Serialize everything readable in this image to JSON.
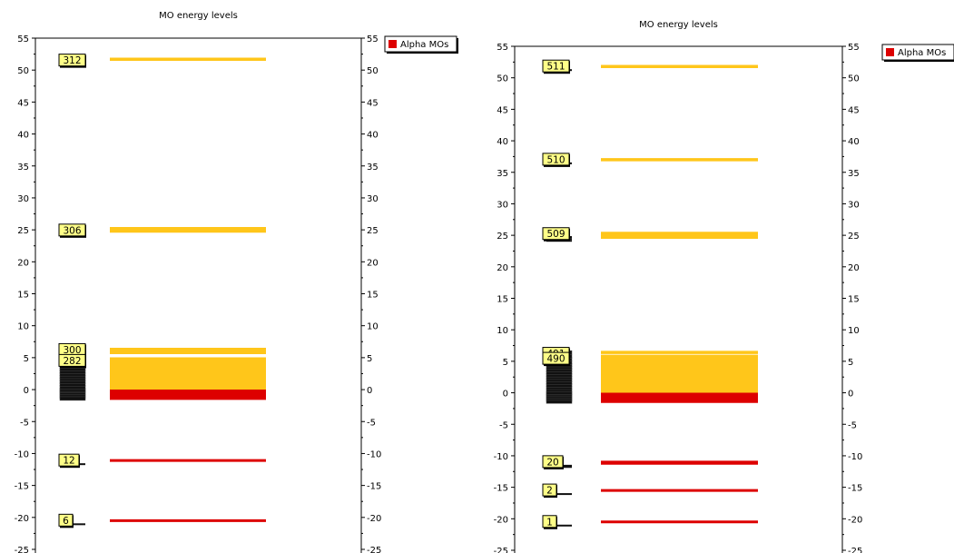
{
  "colors": {
    "occupied": "#dd0000",
    "virtual": "#ffc61a",
    "label_fill": "#ffff88",
    "frame": "#000000"
  },
  "chart_data": [
    {
      "type": "energy_level_diagram",
      "title": "MO energy levels",
      "ylim": [
        -25,
        55
      ],
      "yticks": [
        -25,
        -20,
        -15,
        -10,
        -5,
        0,
        5,
        10,
        15,
        20,
        25,
        30,
        35,
        40,
        45,
        50,
        55
      ],
      "legend": {
        "entries": [
          "Alpha MOs"
        ],
        "position": "right"
      },
      "series": [
        {
          "name": "Alpha MOs",
          "occupied_levels": [
            -20.5,
            -11.1,
            -0.2,
            -0.5,
            -0.8,
            -1.1,
            -1.4
          ],
          "virtual_levels": [
            0.0,
            0.4,
            0.8,
            1.2,
            1.6,
            2.0,
            2.4,
            2.8,
            3.2,
            3.6,
            4.0,
            4.4,
            4.8,
            5.8,
            6.3,
            24.8,
            25.2,
            51.7
          ],
          "labels": [
            {
              "text": "312",
              "energy": 51.5
            },
            {
              "text": "306",
              "energy": 24.9
            },
            {
              "text": "300",
              "energy": 6.2
            },
            {
              "text": "282",
              "energy": 4.5
            },
            {
              "text": "12",
              "energy": -11.1
            },
            {
              "text": "6",
              "energy": -20.5
            }
          ]
        }
      ]
    },
    {
      "type": "energy_level_diagram",
      "title": "MO energy levels",
      "ylim": [
        -25,
        55
      ],
      "yticks": [
        -25,
        -20,
        -15,
        -10,
        -5,
        0,
        5,
        10,
        15,
        20,
        25,
        30,
        35,
        40,
        45,
        50,
        55
      ],
      "legend": {
        "entries": [
          "Alpha MOs"
        ],
        "position": "right"
      },
      "series": [
        {
          "name": "Alpha MOs",
          "occupied_levels": [
            -20.5,
            -15.5,
            -11.2,
            -11.0,
            -0.2,
            -0.5,
            -0.8,
            -1.1,
            -1.4
          ],
          "virtual_levels": [
            0.0,
            0.4,
            0.8,
            1.2,
            1.6,
            2.0,
            2.4,
            2.8,
            3.2,
            3.6,
            4.0,
            4.4,
            4.8,
            5.3,
            5.8,
            6.4,
            24.7,
            25.0,
            25.3,
            37.0,
            51.8
          ],
          "labels": [
            {
              "text": "511",
              "energy": 51.8
            },
            {
              "text": "510",
              "energy": 37.0
            },
            {
              "text": "509",
              "energy": 25.2
            },
            {
              "text": "491",
              "energy": 6.2
            },
            {
              "text": "490",
              "energy": 5.4
            },
            {
              "text": "20",
              "energy": -11.0
            },
            {
              "text": "2",
              "energy": -15.5
            },
            {
              "text": "1",
              "energy": -20.5
            }
          ]
        }
      ]
    }
  ]
}
